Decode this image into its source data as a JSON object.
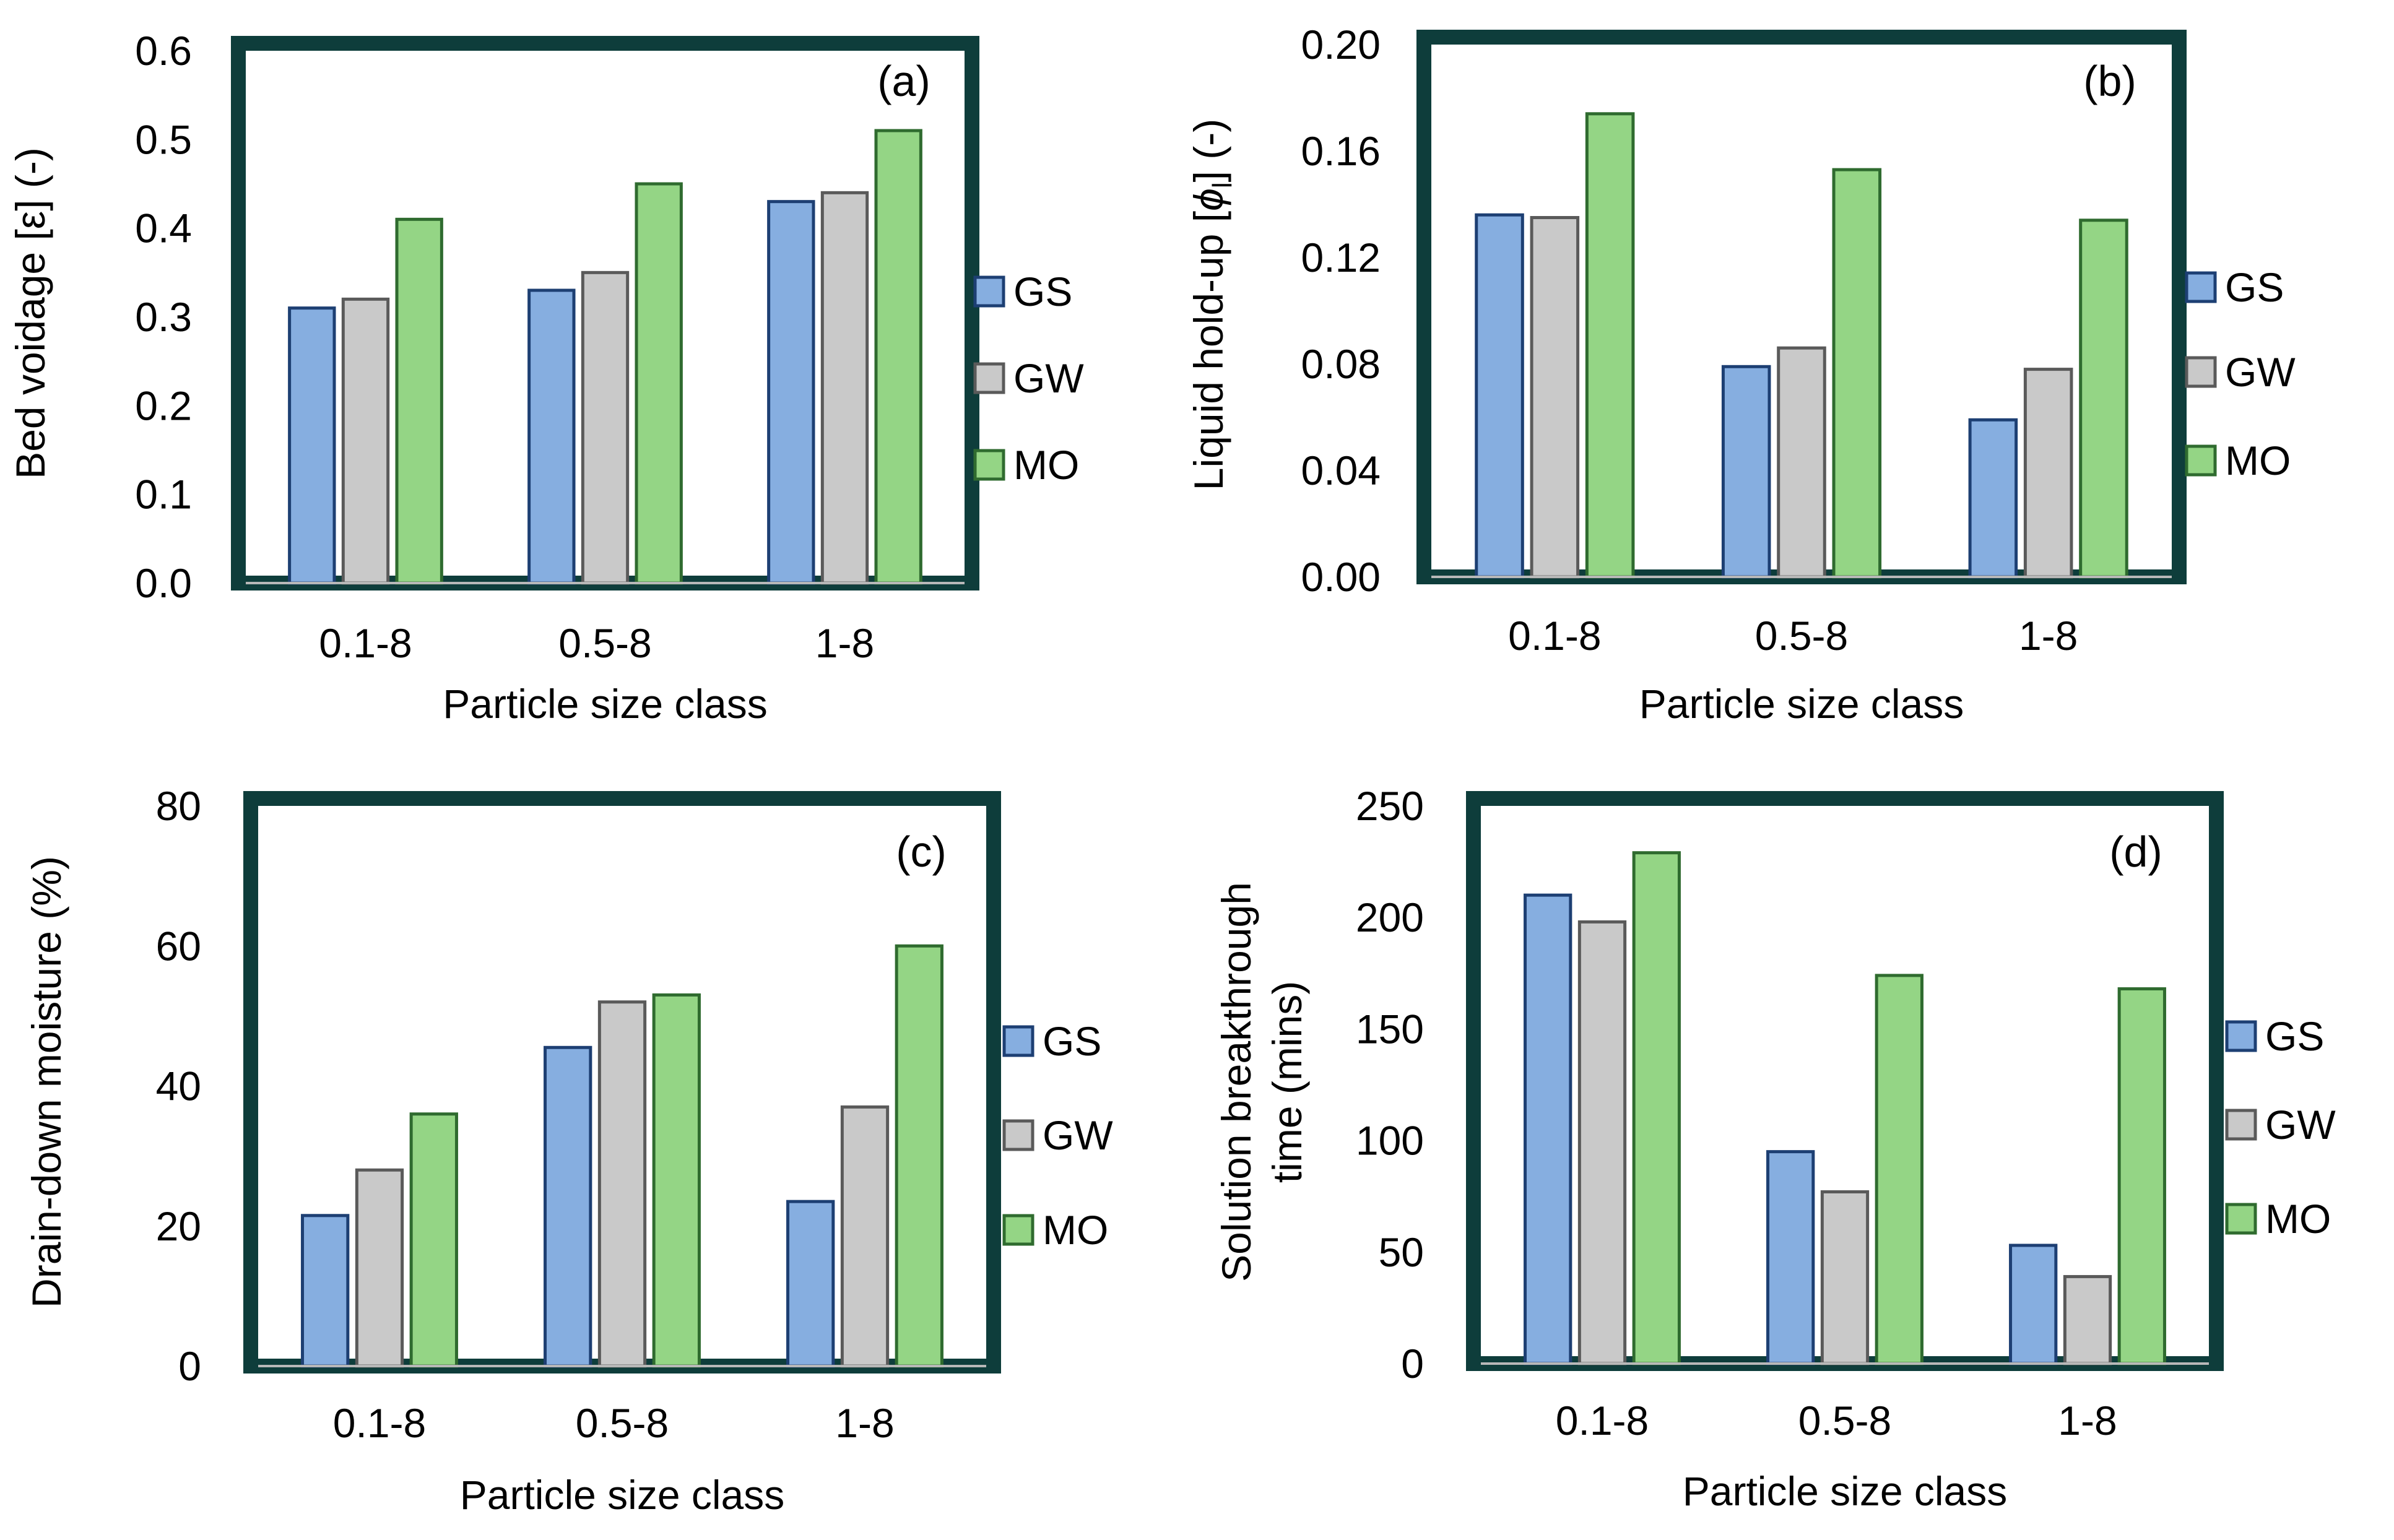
{
  "chart_data": [
    {
      "panel": "(a)",
      "type": "bar",
      "categories": [
        "0.1-8",
        "0.5-8",
        "1-8"
      ],
      "series": [
        {
          "name": "GS",
          "values": [
            0.31,
            0.33,
            0.43
          ]
        },
        {
          "name": "GW",
          "values": [
            0.32,
            0.35,
            0.44
          ]
        },
        {
          "name": "MO",
          "values": [
            0.41,
            0.45,
            0.51
          ]
        }
      ],
      "xlabel": "Particle size class",
      "ylabel": "Bed voidage [ε] (-)",
      "ylim": [
        0,
        0.6
      ],
      "yticks": [
        "0.0",
        "0.1",
        "0.2",
        "0.3",
        "0.4",
        "0.5",
        "0.6"
      ],
      "legend": "right"
    },
    {
      "panel": "(b)",
      "type": "bar",
      "categories": [
        "0.1-8",
        "0.5-8",
        "1-8"
      ],
      "series": [
        {
          "name": "GS",
          "values": [
            0.136,
            0.079,
            0.059
          ]
        },
        {
          "name": "GW",
          "values": [
            0.135,
            0.086,
            0.078
          ]
        },
        {
          "name": "MO",
          "values": [
            0.174,
            0.153,
            0.134
          ]
        }
      ],
      "xlabel": "Particle size class",
      "ylabel": "Liquid hold-up [",
      "ylabel_symbol": "ϕ",
      "ylabel_sub": "l",
      "ylabel_tail": "] (-)",
      "ylim": [
        0,
        0.2
      ],
      "yticks": [
        "0.00",
        "0.04",
        "0.08",
        "0.12",
        "0.16",
        "0.20"
      ],
      "legend": "right"
    },
    {
      "panel": "(c)",
      "type": "bar",
      "categories": [
        "0.1-8",
        "0.5-8",
        "1-8"
      ],
      "series": [
        {
          "name": "GS",
          "values": [
            21.5,
            45.5,
            23.5
          ]
        },
        {
          "name": "GW",
          "values": [
            28,
            52,
            37
          ]
        },
        {
          "name": "MO",
          "values": [
            36,
            53,
            60
          ]
        }
      ],
      "xlabel": "Particle size class",
      "ylabel": "Drain-down moisture (%)",
      "ylim": [
        0,
        80
      ],
      "yticks": [
        "0",
        "20",
        "40",
        "60",
        "80"
      ],
      "legend": "right"
    },
    {
      "panel": "(d)",
      "type": "bar",
      "categories": [
        "0.1-8",
        "0.5-8",
        "1-8"
      ],
      "series": [
        {
          "name": "GS",
          "values": [
            210,
            95,
            53
          ]
        },
        {
          "name": "GW",
          "values": [
            198,
            77,
            39
          ]
        },
        {
          "name": "MO",
          "values": [
            229,
            174,
            168
          ]
        }
      ],
      "xlabel": "Particle size class",
      "ylabel_lines": [
        "Solution breakthrough",
        "time (mins)"
      ],
      "ylim": [
        0,
        250
      ],
      "yticks": [
        "0",
        "50",
        "100",
        "150",
        "200",
        "250"
      ],
      "legend": "right"
    }
  ],
  "colors": {
    "frame": "#0e3d3b",
    "GS": {
      "fill": "#86aee0",
      "stroke": "#1d3f73"
    },
    "GW": {
      "fill": "#c9c9c9",
      "stroke": "#5a5a5a"
    },
    "MO": {
      "fill": "#94d585",
      "stroke": "#2f6b2f"
    }
  }
}
